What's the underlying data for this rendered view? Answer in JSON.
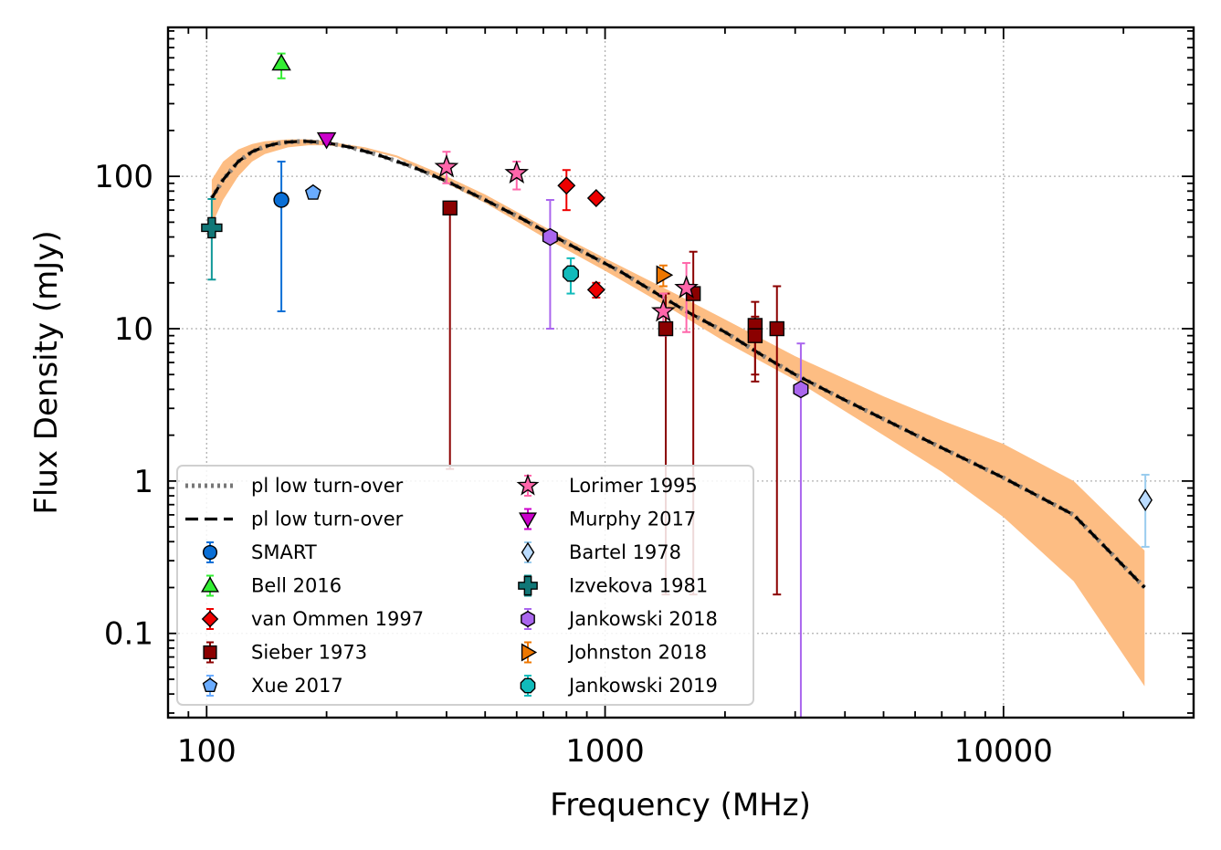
{
  "chart_data": {
    "type": "scatter",
    "xlabel": "Frequency (MHz)",
    "ylabel": "Flux Density (mJy)",
    "xscale": "log",
    "yscale": "log",
    "xlim": [
      80,
      30000
    ],
    "ylim": [
      0.028,
      950
    ],
    "grid": true,
    "legend_position": "lower-left",
    "x_ticks": [
      {
        "value": 100,
        "label": "100"
      },
      {
        "value": 1000,
        "label": "1000"
      },
      {
        "value": 10000,
        "label": "10000"
      }
    ],
    "y_ticks": [
      {
        "value": 0.1,
        "label": "0.1"
      },
      {
        "value": 1,
        "label": "1"
      },
      {
        "value": 10,
        "label": "10"
      },
      {
        "value": 100,
        "label": "100"
      }
    ],
    "fit": {
      "model_points": [
        [
          103,
          72
        ],
        [
          110,
          95
        ],
        [
          120,
          125
        ],
        [
          130,
          145
        ],
        [
          140,
          157
        ],
        [
          150,
          164
        ],
        [
          160,
          168
        ],
        [
          175,
          170
        ],
        [
          190,
          168
        ],
        [
          200,
          166
        ],
        [
          230,
          155
        ],
        [
          270,
          138
        ],
        [
          330,
          115
        ],
        [
          400,
          93
        ],
        [
          500,
          70
        ],
        [
          600,
          55
        ],
        [
          750,
          40
        ],
        [
          900,
          31
        ],
        [
          1100,
          23.5
        ],
        [
          1300,
          18
        ],
        [
          1600,
          13
        ],
        [
          2000,
          9.5
        ],
        [
          2500,
          6.6
        ],
        [
          3000,
          5.0
        ],
        [
          4000,
          3.4
        ],
        [
          5000,
          2.55
        ],
        [
          7000,
          1.65
        ],
        [
          10000,
          1.05
        ],
        [
          15000,
          0.6
        ],
        [
          22600,
          0.2
        ]
      ],
      "band_upper": [
        [
          103,
          95
        ],
        [
          110,
          125
        ],
        [
          120,
          150
        ],
        [
          130,
          163
        ],
        [
          140,
          170
        ],
        [
          160,
          175
        ],
        [
          180,
          175
        ],
        [
          200,
          170
        ],
        [
          250,
          155
        ],
        [
          300,
          137
        ],
        [
          400,
          100
        ],
        [
          500,
          76
        ],
        [
          700,
          47
        ],
        [
          1000,
          29
        ],
        [
          1500,
          17
        ],
        [
          2000,
          11.5
        ],
        [
          3000,
          6.6
        ],
        [
          5000,
          3.6
        ],
        [
          7000,
          2.5
        ],
        [
          10000,
          1.75
        ],
        [
          15000,
          1.0
        ],
        [
          22600,
          0.35
        ]
      ],
      "band_lower": [
        [
          103,
          48
        ],
        [
          110,
          70
        ],
        [
          120,
          100
        ],
        [
          130,
          125
        ],
        [
          140,
          140
        ],
        [
          160,
          155
        ],
        [
          180,
          160
        ],
        [
          200,
          160
        ],
        [
          250,
          150
        ],
        [
          300,
          133
        ],
        [
          400,
          90
        ],
        [
          500,
          67
        ],
        [
          700,
          40
        ],
        [
          1000,
          24
        ],
        [
          1500,
          13
        ],
        [
          2000,
          8.2
        ],
        [
          3000,
          4.6
        ],
        [
          5000,
          2.0
        ],
        [
          7000,
          1.15
        ],
        [
          10000,
          0.58
        ],
        [
          15000,
          0.22
        ],
        [
          22600,
          0.045
        ]
      ]
    },
    "series": [
      {
        "name": "SMART",
        "marker": "circle",
        "color": "#0a6fd6",
        "ecolor": "#0a6fd6",
        "points": [
          {
            "x": 154,
            "y": 70,
            "ylo": 13,
            "yhi": 125
          }
        ]
      },
      {
        "name": "Bell 2016",
        "marker": "triangle-up",
        "color": "#33ee33",
        "ecolor": "#33ee33",
        "points": [
          {
            "x": 154,
            "y": 550,
            "ylo": 440,
            "yhi": 640
          }
        ]
      },
      {
        "name": "van Ommen 1997",
        "marker": "diamond",
        "color": "#ee0000",
        "ecolor": "#ee0000",
        "points": [
          {
            "x": 800,
            "y": 87,
            "ylo": 60,
            "yhi": 110
          },
          {
            "x": 950,
            "y": 72,
            "ylo": 68,
            "yhi": 76
          },
          {
            "x": 950,
            "y": 18,
            "ylo": 16,
            "yhi": 20
          }
        ]
      },
      {
        "name": "Sieber 1973",
        "marker": "square",
        "color": "#8b0000",
        "ecolor": "#8b0000",
        "points": [
          {
            "x": 408,
            "y": 62,
            "ylo": 1.2,
            "yhi": 62
          },
          {
            "x": 1420,
            "y": 10,
            "ylo": 0.18,
            "yhi": 17
          },
          {
            "x": 1665,
            "y": 17,
            "ylo": 0.18,
            "yhi": 32
          },
          {
            "x": 2380,
            "y": 10.5,
            "ylo": 5,
            "yhi": 15
          },
          {
            "x": 2380,
            "y": 9,
            "ylo": 4.5,
            "yhi": 12
          },
          {
            "x": 2700,
            "y": 10,
            "ylo": 0.18,
            "yhi": 19
          }
        ]
      },
      {
        "name": "Xue 2017",
        "marker": "pentagon",
        "color": "#6aacff",
        "ecolor": "#6aacff",
        "points": [
          {
            "x": 185,
            "y": 78,
            "ylo": 75,
            "yhi": 81
          }
        ]
      },
      {
        "name": "Lorimer 1995",
        "marker": "star",
        "color": "#ff66aa",
        "ecolor": "#ff66aa",
        "points": [
          {
            "x": 400,
            "y": 115,
            "ylo": 90,
            "yhi": 145
          },
          {
            "x": 600,
            "y": 105,
            "ylo": 82,
            "yhi": 125
          },
          {
            "x": 1400,
            "y": 13,
            "ylo": 9,
            "yhi": 17
          },
          {
            "x": 1600,
            "y": 18.5,
            "ylo": 9.5,
            "yhi": 27
          }
        ]
      },
      {
        "name": "Murphy 2017",
        "marker": "triangle-down",
        "color": "#cc00cc",
        "ecolor": "#cc00cc",
        "points": [
          {
            "x": 200,
            "y": 175,
            "ylo": 165,
            "yhi": 185
          }
        ]
      },
      {
        "name": "Bartel 1978",
        "marker": "thin-diamond",
        "color": "#bbdcff",
        "ecolor": "#99ccee",
        "points": [
          {
            "x": 22700,
            "y": 0.75,
            "ylo": 0.37,
            "yhi": 1.1
          }
        ]
      },
      {
        "name": "Izvekova 1981",
        "marker": "plus",
        "color": "#117777",
        "ecolor": "#119999",
        "points": [
          {
            "x": 103,
            "y": 46,
            "ylo": 21,
            "yhi": 71
          }
        ]
      },
      {
        "name": "Jankowski 2018",
        "marker": "hexagon",
        "color": "#aa66ee",
        "ecolor": "#aa66ee",
        "points": [
          {
            "x": 728,
            "y": 40,
            "ylo": 10,
            "yhi": 70
          },
          {
            "x": 3100,
            "y": 4,
            "ylo": 0.02,
            "yhi": 8
          }
        ]
      },
      {
        "name": "Johnston 2018",
        "marker": "triangle-right",
        "color": "#ee7700",
        "ecolor": "#ee7700",
        "points": [
          {
            "x": 1400,
            "y": 22.5,
            "ylo": 19,
            "yhi": 26
          }
        ]
      },
      {
        "name": "Jankowski 2019",
        "marker": "octagon",
        "color": "#11bbbb",
        "ecolor": "#11bbbb",
        "points": [
          {
            "x": 820,
            "y": 23,
            "ylo": 17,
            "yhi": 29
          }
        ]
      }
    ],
    "legend": {
      "columns": [
        [
          {
            "label": "pl low turn-over",
            "kind": "line-dotted",
            "color": "#777777"
          },
          {
            "label": "pl low turn-over",
            "kind": "line-dashed",
            "color": "#000000"
          },
          {
            "label": "SMART",
            "kind": "series",
            "series_index": 0
          },
          {
            "label": "Bell 2016",
            "kind": "series",
            "series_index": 1
          },
          {
            "label": "van Ommen 1997",
            "kind": "series",
            "series_index": 2
          },
          {
            "label": "Sieber 1973",
            "kind": "series",
            "series_index": 3
          },
          {
            "label": "Xue 2017",
            "kind": "series",
            "series_index": 4
          }
        ],
        [
          {
            "label": "Lorimer 1995",
            "kind": "series",
            "series_index": 5
          },
          {
            "label": "Murphy 2017",
            "kind": "series",
            "series_index": 6
          },
          {
            "label": "Bartel 1978",
            "kind": "series",
            "series_index": 7
          },
          {
            "label": "Izvekova 1981",
            "kind": "series",
            "series_index": 8
          },
          {
            "label": "Jankowski 2018",
            "kind": "series",
            "series_index": 9
          },
          {
            "label": "Johnston 2018",
            "kind": "series",
            "series_index": 10
          },
          {
            "label": "Jankowski 2019",
            "kind": "series",
            "series_index": 11
          }
        ]
      ]
    },
    "colors": {
      "band": "#fdbd83",
      "grid": "#b0b0b0",
      "fit_dotted": "#777777",
      "fit_dashed": "#000000"
    }
  }
}
